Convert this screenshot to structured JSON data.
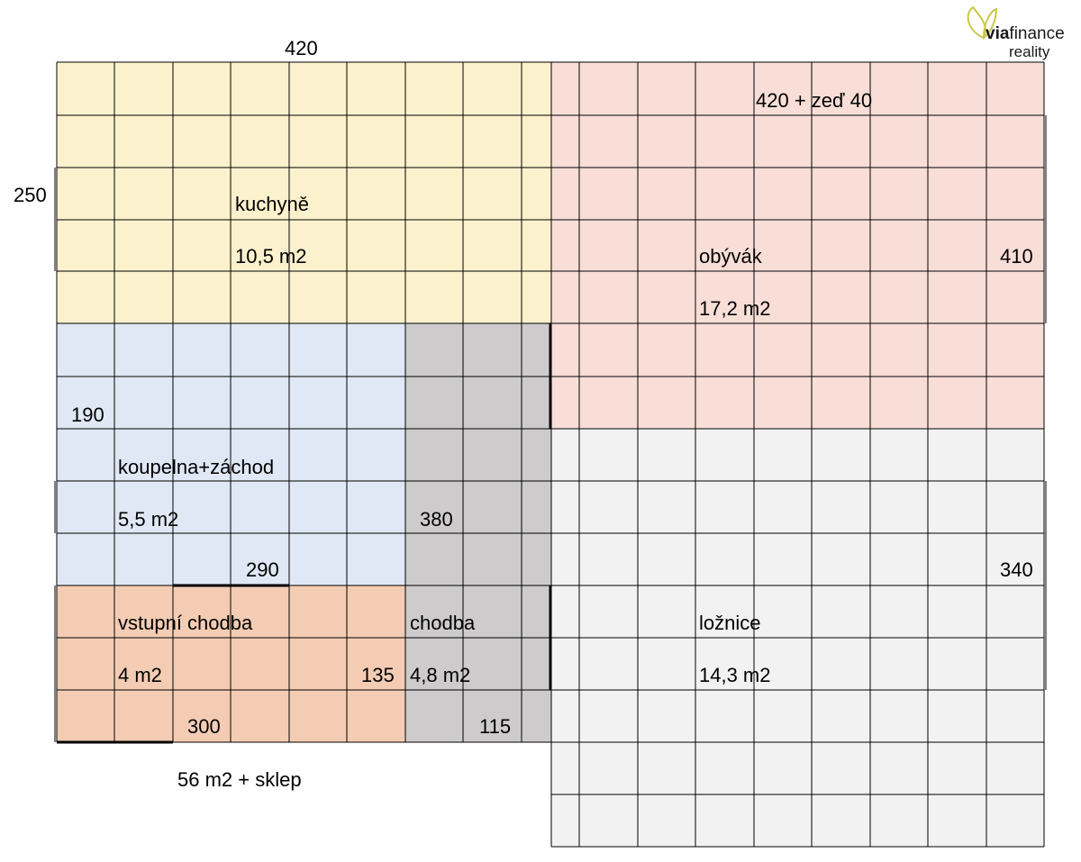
{
  "colors": {
    "kitchen": "#fcf1cd",
    "living": "#f8ded7",
    "bathroom": "#dfe8f4",
    "corridor": "#cdcbcb",
    "entrance": "#f3ccb3",
    "bedroom": "#f2f2f2",
    "grid": "#000000",
    "logo_accent": "#c9c84a"
  },
  "logo": {
    "brand_bold": "via",
    "brand_light": "finance",
    "subtitle": "reality"
  },
  "dimensions": {
    "top_width": "420",
    "kitchen_height": "250",
    "living_width": "420 + zeď 40",
    "living_height": "410",
    "bathroom_height": "190",
    "corridor_length": "380",
    "bathroom_width": "290",
    "bedroom_height": "340",
    "entrance_height": "135",
    "entrance_width": "300",
    "corridor_width": "115"
  },
  "rooms": {
    "kitchen": {
      "name": "kuchyně",
      "area": "10,5 m2"
    },
    "living": {
      "name": "obývák",
      "area": "17,2 m2"
    },
    "bathroom": {
      "name": "koupelna+záchod",
      "area": "5,5 m2"
    },
    "entrance": {
      "name": "vstupní chodba",
      "area": "4 m2"
    },
    "corridor": {
      "name": "chodba",
      "area": "4,8 m2"
    },
    "bedroom": {
      "name": "ložnice",
      "area": "14,3 m2"
    }
  },
  "total": "56 m2 + sklep"
}
